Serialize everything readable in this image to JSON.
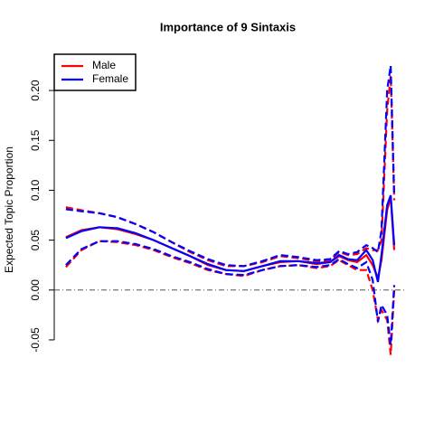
{
  "chart_data": {
    "type": "line",
    "title": "Importance of 9 Sintaxis",
    "ylabel": "Expected Topic Proportion",
    "x": [
      3.3,
      7.7,
      12.8,
      17.9,
      23.1,
      28.2,
      33.3,
      38.5,
      43.6,
      48.7,
      53.8,
      59.0,
      64.1,
      69.2,
      74.4,
      78.2,
      80.8,
      83.3,
      85.9,
      88.5,
      90.3,
      91.8,
      92.8,
      94.4,
      95.4,
      96.4
    ],
    "xlim": [
      0,
      100
    ],
    "ylim": [
      -0.07,
      0.23
    ],
    "yticks": [
      {
        "value": -0.05,
        "label": "-0.05"
      },
      {
        "value": 0,
        "label": "0.00"
      },
      {
        "value": 0.05,
        "label": "0.05"
      },
      {
        "value": 0.1,
        "label": "0.10"
      },
      {
        "value": 0.15,
        "label": "0.15"
      },
      {
        "value": 0.2,
        "label": "0.20"
      }
    ],
    "hline": 0,
    "legend": "topleft",
    "series": [
      {
        "name": "Male",
        "color": "#ff0000",
        "values": [
          0.053,
          0.06,
          0.063,
          0.061,
          0.056,
          0.05,
          0.042,
          0.034,
          0.025,
          0.02,
          0.019,
          0.024,
          0.028,
          0.029,
          0.026,
          0.028,
          0.034,
          0.03,
          0.028,
          0.035,
          0.025,
          0.012,
          0.03,
          0.08,
          0.093,
          0.04
        ],
        "upper": [
          0.083,
          0.08,
          0.077,
          0.073,
          0.066,
          0.058,
          0.048,
          0.038,
          0.03,
          0.024,
          0.024,
          0.028,
          0.034,
          0.032,
          0.029,
          0.03,
          0.038,
          0.035,
          0.036,
          0.042,
          0.04,
          0.04,
          0.05,
          0.18,
          0.215,
          0.09
        ],
        "lower": [
          0.023,
          0.04,
          0.049,
          0.048,
          0.045,
          0.04,
          0.033,
          0.027,
          0.02,
          0.016,
          0.014,
          0.02,
          0.024,
          0.025,
          0.022,
          0.024,
          0.03,
          0.025,
          0.02,
          0.02,
          0.0,
          -0.03,
          -0.02,
          -0.03,
          -0.065,
          0.0
        ]
      },
      {
        "name": "Female",
        "color": "#0000ff",
        "values": [
          0.052,
          0.059,
          0.063,
          0.062,
          0.057,
          0.05,
          0.042,
          0.034,
          0.026,
          0.02,
          0.019,
          0.024,
          0.029,
          0.029,
          0.027,
          0.028,
          0.035,
          0.031,
          0.03,
          0.04,
          0.03,
          0.008,
          0.035,
          0.085,
          0.095,
          0.045
        ],
        "upper": [
          0.081,
          0.079,
          0.077,
          0.073,
          0.066,
          0.058,
          0.048,
          0.039,
          0.031,
          0.025,
          0.024,
          0.029,
          0.035,
          0.033,
          0.03,
          0.031,
          0.039,
          0.036,
          0.038,
          0.045,
          0.042,
          0.038,
          0.06,
          0.2,
          0.225,
          0.095
        ],
        "lower": [
          0.025,
          0.041,
          0.049,
          0.049,
          0.046,
          0.041,
          0.034,
          0.028,
          0.021,
          0.016,
          0.015,
          0.02,
          0.024,
          0.025,
          0.023,
          0.025,
          0.031,
          0.026,
          0.022,
          0.028,
          0.01,
          -0.032,
          -0.015,
          -0.025,
          -0.055,
          0.005
        ]
      }
    ]
  }
}
